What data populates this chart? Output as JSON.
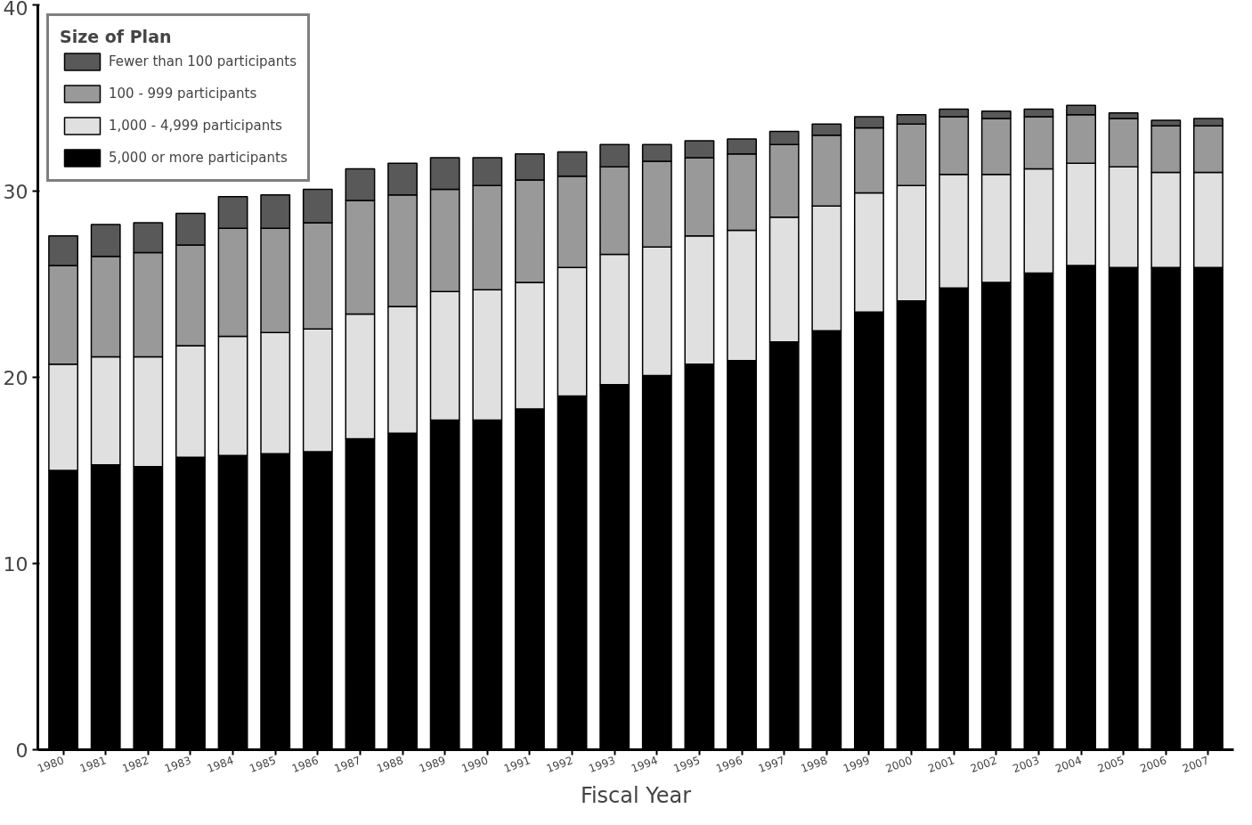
{
  "chart_data": {
    "type": "bar",
    "stacked": true,
    "xlabel": "Fiscal Year",
    "legend_title": "Size of Plan",
    "legend": "top left",
    "categories": [
      "1980",
      "1981",
      "1982",
      "1983",
      "1984",
      "1985",
      "1986",
      "1987",
      "1988",
      "1989",
      "1990",
      "1991",
      "1992",
      "1993",
      "1994",
      "1995",
      "1996",
      "1997",
      "1998",
      "1999",
      "2000",
      "2001",
      "2002",
      "2003",
      "2004",
      "2005",
      "2006",
      "2007"
    ],
    "ylim": [
      0,
      40
    ],
    "yticks": [
      0,
      10,
      20,
      30,
      40
    ],
    "series": [
      {
        "name": "5,000 or more participants",
        "color": "#000000",
        "values": [
          15.0,
          15.3,
          15.2,
          15.7,
          15.8,
          15.9,
          16.0,
          16.7,
          17.0,
          17.7,
          17.7,
          18.3,
          19.0,
          19.6,
          20.1,
          20.7,
          20.9,
          21.9,
          22.5,
          23.5,
          24.1,
          24.8,
          25.1,
          25.6,
          26.0,
          25.9,
          25.9,
          25.9
        ]
      },
      {
        "name": "1,000 - 4,999 participants",
        "color": "#e0e0e0",
        "values": [
          5.7,
          5.8,
          5.9,
          6.0,
          6.4,
          6.5,
          6.6,
          6.7,
          6.8,
          6.9,
          7.0,
          6.8,
          6.9,
          7.0,
          6.9,
          6.9,
          7.0,
          6.7,
          6.7,
          6.4,
          6.2,
          6.1,
          5.8,
          5.6,
          5.5,
          5.4,
          5.1,
          5.1
        ]
      },
      {
        "name": "100 - 999 participants",
        "color": "#999999",
        "values": [
          5.3,
          5.4,
          5.6,
          5.4,
          5.8,
          5.6,
          5.7,
          6.1,
          6.0,
          5.5,
          5.6,
          5.5,
          4.9,
          4.7,
          4.6,
          4.2,
          4.1,
          3.9,
          3.8,
          3.5,
          3.3,
          3.1,
          3.0,
          2.8,
          2.6,
          2.6,
          2.5,
          2.5
        ]
      },
      {
        "name": "Fewer than 100 participants",
        "color": "#595959",
        "values": [
          1.6,
          1.7,
          1.6,
          1.7,
          1.7,
          1.8,
          1.8,
          1.7,
          1.7,
          1.7,
          1.5,
          1.4,
          1.3,
          1.2,
          0.9,
          0.9,
          0.8,
          0.7,
          0.6,
          0.6,
          0.5,
          0.4,
          0.4,
          0.4,
          0.5,
          0.3,
          0.3,
          0.4
        ]
      }
    ]
  }
}
